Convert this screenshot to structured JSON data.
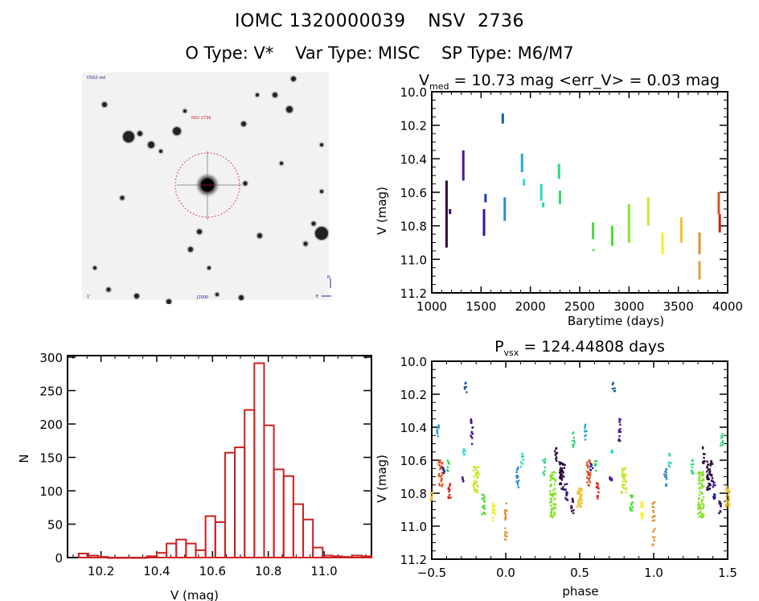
{
  "header": {
    "id_label": "IOMC 1320000039",
    "name_label": "NSV  2736",
    "otype": "O Type: V*",
    "vartype": "Var Type: MISC",
    "sptype": "SP Type: M6/M7"
  },
  "finder_image": {
    "corner_label_top_left": "DSS2 red",
    "target_label": "NSV 2736",
    "bottom_left_label": "1'",
    "bottom_center_label": "J2000",
    "compass_north": "N",
    "compass_east": "E",
    "circle_color": "#cc2222"
  },
  "chart_data": [
    {
      "type": "scatter",
      "name": "light-curve",
      "title": "V_med = 10.73 mag <err_V> = 0.03 mag",
      "title_main": "V",
      "title_sub": "med",
      "title_rest": " = 10.73 mag <err_V> = 0.03 mag",
      "xlabel": "Barytime (days)",
      "ylabel": "V (mag)",
      "xlim": [
        1000,
        4000
      ],
      "ylim": [
        11.2,
        10.0
      ],
      "xticks": [
        1000,
        1500,
        2000,
        2500,
        3000,
        3500,
        4000
      ],
      "yticks": [
        10.0,
        10.2,
        10.4,
        10.6,
        10.8,
        11.0,
        11.2
      ],
      "ytick_labels": [
        "10.0",
        "10.2",
        "10.4",
        "10.6",
        "10.8",
        "11.0",
        "11.2"
      ],
      "segments": [
        {
          "t": 1150,
          "vmin": 10.53,
          "vmax": 10.93,
          "color": "#2a0a3a"
        },
        {
          "t": 1185,
          "vmin": 10.7,
          "vmax": 10.73,
          "color": "#3a0a5a"
        },
        {
          "t": 1320,
          "vmin": 10.35,
          "vmax": 10.53,
          "color": "#4b1a9a"
        },
        {
          "t": 1530,
          "vmin": 10.7,
          "vmax": 10.86,
          "color": "#2a1a9a"
        },
        {
          "t": 1545,
          "vmin": 10.61,
          "vmax": 10.66,
          "color": "#1a3aba"
        },
        {
          "t": 1720,
          "vmin": 10.13,
          "vmax": 10.19,
          "color": "#1a5aaa"
        },
        {
          "t": 1740,
          "vmin": 10.63,
          "vmax": 10.77,
          "color": "#2a8ad0"
        },
        {
          "t": 1915,
          "vmin": 10.37,
          "vmax": 10.48,
          "color": "#2aa8d8"
        },
        {
          "t": 1935,
          "vmin": 10.52,
          "vmax": 10.56,
          "color": "#30d8e0"
        },
        {
          "t": 2110,
          "vmin": 10.55,
          "vmax": 10.65,
          "color": "#28d8c0"
        },
        {
          "t": 2130,
          "vmin": 10.66,
          "vmax": 10.69,
          "color": "#28d8b0"
        },
        {
          "t": 2290,
          "vmin": 10.43,
          "vmax": 10.52,
          "color": "#30d880"
        },
        {
          "t": 2300,
          "vmin": 10.59,
          "vmax": 10.67,
          "color": "#30d860"
        },
        {
          "t": 2635,
          "vmin": 10.78,
          "vmax": 10.88,
          "color": "#48d848"
        },
        {
          "t": 2640,
          "vmin": 10.94,
          "vmax": 10.95,
          "color": "#48d848"
        },
        {
          "t": 2830,
          "vmin": 10.8,
          "vmax": 10.92,
          "color": "#48e030"
        },
        {
          "t": 3000,
          "vmin": 10.67,
          "vmax": 10.9,
          "color": "#88e030"
        },
        {
          "t": 3195,
          "vmin": 10.63,
          "vmax": 10.8,
          "color": "#c8e830"
        },
        {
          "t": 3340,
          "vmin": 10.84,
          "vmax": 10.97,
          "color": "#f0f030"
        },
        {
          "t": 3530,
          "vmin": 10.75,
          "vmax": 10.9,
          "color": "#f0c030"
        },
        {
          "t": 3715,
          "vmin": 10.84,
          "vmax": 10.97,
          "color": "#e09030"
        },
        {
          "t": 3715,
          "vmin": 11.01,
          "vmax": 11.12,
          "color": "#e0a040"
        },
        {
          "t": 3910,
          "vmin": 10.6,
          "vmax": 10.73,
          "color": "#e05020"
        },
        {
          "t": 3920,
          "vmin": 10.73,
          "vmax": 10.84,
          "color": "#d02010"
        }
      ]
    },
    {
      "type": "bar",
      "name": "histogram",
      "title": "",
      "xlabel": "V (mag)",
      "ylabel": "N",
      "xlim": [
        10.08,
        11.17
      ],
      "ylim": [
        0,
        300
      ],
      "xticks": [
        10.2,
        10.4,
        10.6,
        10.8,
        11.0
      ],
      "xtick_labels": [
        "10.2",
        "10.4",
        "10.6",
        "10.8",
        "11.0"
      ],
      "yticks": [
        0,
        50,
        100,
        150,
        200,
        250,
        300
      ],
      "bin_start": 10.12,
      "bin_width": 0.035,
      "values": [
        6,
        3,
        1,
        0,
        0,
        0,
        0,
        2,
        7,
        21,
        27,
        21,
        11,
        62,
        53,
        157,
        165,
        221,
        291,
        198,
        132,
        122,
        80,
        57,
        15,
        3,
        2,
        1,
        3,
        2
      ],
      "bar_color": "#cc2020"
    },
    {
      "type": "scatter",
      "name": "phase-curve",
      "title": "P_vsx = 124.44808 days",
      "title_main": "P",
      "title_sub": "vsx",
      "title_rest": " = 124.44808 days",
      "xlabel": "phase",
      "ylabel": "V (mag)",
      "xlim": [
        -0.5,
        1.5
      ],
      "ylim": [
        11.2,
        10.0
      ],
      "xticks": [
        -0.5,
        0.0,
        0.5,
        1.0,
        1.5
      ],
      "xtick_labels": [
        "−0.5",
        "0.0",
        "0.5",
        "1.0",
        "1.5"
      ],
      "yticks": [
        10.0,
        10.2,
        10.4,
        10.6,
        10.8,
        11.0,
        11.2
      ],
      "ytick_labels": [
        "10.0",
        "10.2",
        "10.4",
        "10.6",
        "10.8",
        "11.0",
        "11.2"
      ],
      "period_days": 124.44808,
      "clusters": [
        {
          "phase": -0.5,
          "vmin": 10.79,
          "vmax": 10.87,
          "width": 0.01,
          "color": "#f0c030"
        },
        {
          "phase": -0.46,
          "vmin": 10.38,
          "vmax": 10.48,
          "width": 0.01,
          "color": "#2aa8d8"
        },
        {
          "phase": -0.44,
          "vmin": 10.6,
          "vmax": 10.77,
          "width": 0.025,
          "color": "#e05020"
        },
        {
          "phase": -0.42,
          "vmin": 10.62,
          "vmax": 10.68,
          "width": 0.005,
          "color": "#2a1a9a"
        },
        {
          "phase": -0.39,
          "vmin": 10.6,
          "vmax": 10.67,
          "width": 0.008,
          "color": "#30d860"
        },
        {
          "phase": -0.38,
          "vmin": 10.73,
          "vmax": 10.84,
          "width": 0.005,
          "color": "#d02010"
        },
        {
          "phase": -0.29,
          "vmin": 10.7,
          "vmax": 10.73,
          "width": 0.005,
          "color": "#4b1a9a"
        },
        {
          "phase": -0.28,
          "vmin": 10.53,
          "vmax": 10.57,
          "width": 0.005,
          "color": "#30d8e0"
        },
        {
          "phase": -0.27,
          "vmin": 10.13,
          "vmax": 10.19,
          "width": 0.005,
          "color": "#1a5aaa"
        },
        {
          "phase": -0.23,
          "vmin": 10.35,
          "vmax": 10.52,
          "width": 0.006,
          "color": "#4b1a9a"
        },
        {
          "phase": -0.2,
          "vmin": 10.64,
          "vmax": 10.8,
          "width": 0.035,
          "color": "#c8e830"
        },
        {
          "phase": -0.15,
          "vmin": 10.8,
          "vmax": 10.93,
          "width": 0.02,
          "color": "#48e030"
        },
        {
          "phase": -0.08,
          "vmin": 10.85,
          "vmax": 10.97,
          "width": 0.02,
          "color": "#f0f030"
        },
        {
          "phase": 0.0,
          "vmin": 10.85,
          "vmax": 10.97,
          "width": 0.008,
          "color": "#e09030"
        },
        {
          "phase": 0.0,
          "vmin": 11.01,
          "vmax": 11.12,
          "width": 0.006,
          "color": "#e0a040"
        },
        {
          "phase": 0.08,
          "vmin": 10.64,
          "vmax": 10.77,
          "width": 0.015,
          "color": "#2a8ad0"
        },
        {
          "phase": 0.11,
          "vmin": 10.56,
          "vmax": 10.64,
          "width": 0.006,
          "color": "#28d8c0"
        },
        {
          "phase": 0.26,
          "vmin": 10.59,
          "vmax": 10.69,
          "width": 0.008,
          "color": "#30d880"
        },
        {
          "phase": 0.32,
          "vmin": 10.67,
          "vmax": 10.95,
          "width": 0.04,
          "color": "#88e030"
        },
        {
          "phase": 0.34,
          "vmin": 10.52,
          "vmax": 10.62,
          "width": 0.005,
          "color": "#2a0a3a"
        },
        {
          "phase": 0.38,
          "vmin": 10.6,
          "vmax": 10.78,
          "width": 0.04,
          "color": "#2a0a3a"
        },
        {
          "phase": 0.41,
          "vmin": 10.73,
          "vmax": 10.85,
          "width": 0.01,
          "color": "#2a1a9a"
        },
        {
          "phase": 0.45,
          "vmin": 10.83,
          "vmax": 10.93,
          "width": 0.005,
          "color": "#3a0a5a"
        },
        {
          "phase": 0.46,
          "vmin": 10.43,
          "vmax": 10.52,
          "width": 0.008,
          "color": "#30d880"
        },
        {
          "phase": 0.5,
          "vmin": 10.76,
          "vmax": 10.89,
          "width": 0.03,
          "color": "#f0c030"
        }
      ]
    }
  ]
}
